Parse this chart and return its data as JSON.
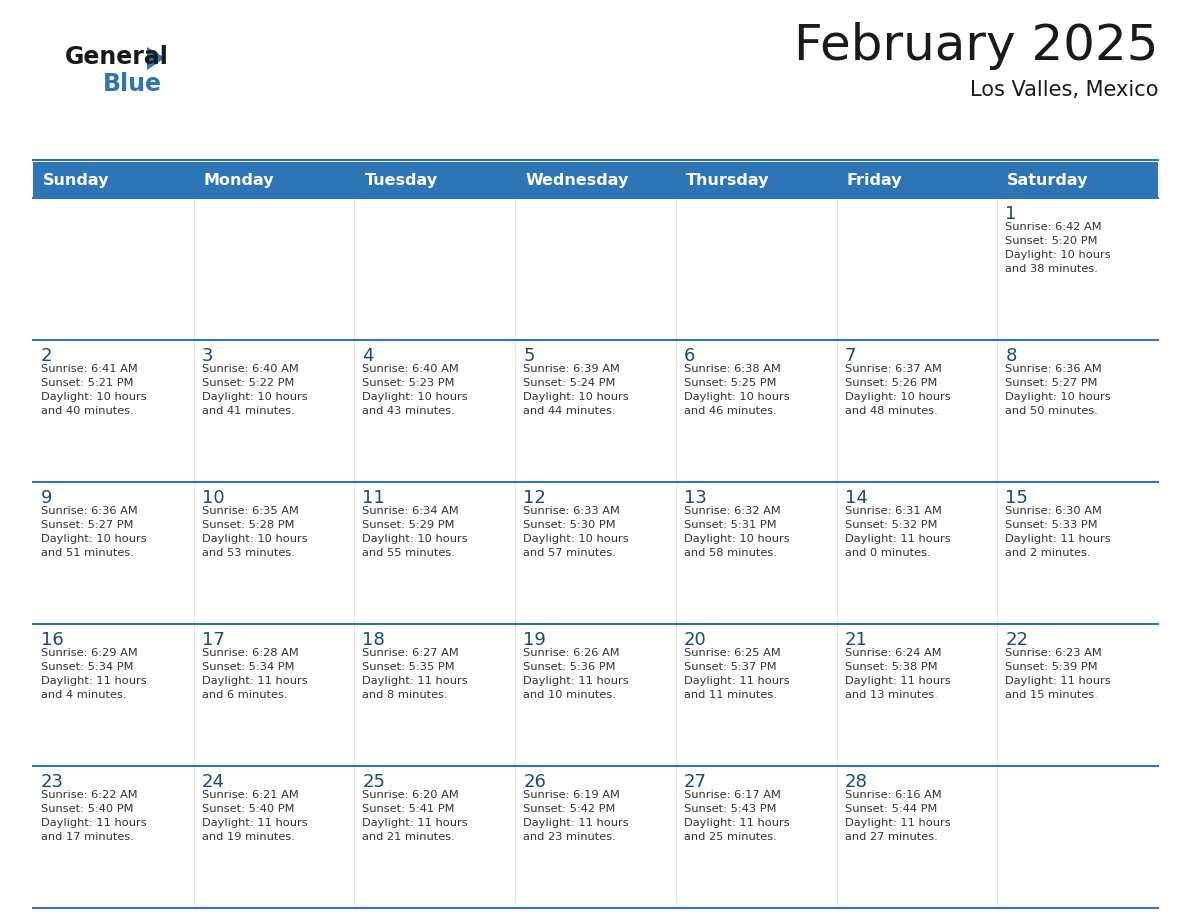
{
  "title": "February 2025",
  "subtitle": "Los Valles, Mexico",
  "header_color": "#2E75B6",
  "header_text_color": "#FFFFFF",
  "background_color": "#FFFFFF",
  "day_headers": [
    "Sunday",
    "Monday",
    "Tuesday",
    "Wednesday",
    "Thursday",
    "Friday",
    "Saturday"
  ],
  "title_color": "#1A1A1A",
  "subtitle_color": "#1A1A1A",
  "day_number_color": "#1A4A7A",
  "cell_text_color": "#333333",
  "divider_color": "#2E75B6",
  "logo_general_color": "#1A1A1A",
  "logo_blue_color": "#2E75B6",
  "logo_triangle_color": "#2E75B6",
  "days": [
    {
      "day": 1,
      "col": 6,
      "row": 0,
      "sunrise": "6:42 AM",
      "sunset": "5:20 PM",
      "daylight_hours": 10,
      "daylight_minutes": 38
    },
    {
      "day": 2,
      "col": 0,
      "row": 1,
      "sunrise": "6:41 AM",
      "sunset": "5:21 PM",
      "daylight_hours": 10,
      "daylight_minutes": 40
    },
    {
      "day": 3,
      "col": 1,
      "row": 1,
      "sunrise": "6:40 AM",
      "sunset": "5:22 PM",
      "daylight_hours": 10,
      "daylight_minutes": 41
    },
    {
      "day": 4,
      "col": 2,
      "row": 1,
      "sunrise": "6:40 AM",
      "sunset": "5:23 PM",
      "daylight_hours": 10,
      "daylight_minutes": 43
    },
    {
      "day": 5,
      "col": 3,
      "row": 1,
      "sunrise": "6:39 AM",
      "sunset": "5:24 PM",
      "daylight_hours": 10,
      "daylight_minutes": 44
    },
    {
      "day": 6,
      "col": 4,
      "row": 1,
      "sunrise": "6:38 AM",
      "sunset": "5:25 PM",
      "daylight_hours": 10,
      "daylight_minutes": 46
    },
    {
      "day": 7,
      "col": 5,
      "row": 1,
      "sunrise": "6:37 AM",
      "sunset": "5:26 PM",
      "daylight_hours": 10,
      "daylight_minutes": 48
    },
    {
      "day": 8,
      "col": 6,
      "row": 1,
      "sunrise": "6:36 AM",
      "sunset": "5:27 PM",
      "daylight_hours": 10,
      "daylight_minutes": 50
    },
    {
      "day": 9,
      "col": 0,
      "row": 2,
      "sunrise": "6:36 AM",
      "sunset": "5:27 PM",
      "daylight_hours": 10,
      "daylight_minutes": 51
    },
    {
      "day": 10,
      "col": 1,
      "row": 2,
      "sunrise": "6:35 AM",
      "sunset": "5:28 PM",
      "daylight_hours": 10,
      "daylight_minutes": 53
    },
    {
      "day": 11,
      "col": 2,
      "row": 2,
      "sunrise": "6:34 AM",
      "sunset": "5:29 PM",
      "daylight_hours": 10,
      "daylight_minutes": 55
    },
    {
      "day": 12,
      "col": 3,
      "row": 2,
      "sunrise": "6:33 AM",
      "sunset": "5:30 PM",
      "daylight_hours": 10,
      "daylight_minutes": 57
    },
    {
      "day": 13,
      "col": 4,
      "row": 2,
      "sunrise": "6:32 AM",
      "sunset": "5:31 PM",
      "daylight_hours": 10,
      "daylight_minutes": 58
    },
    {
      "day": 14,
      "col": 5,
      "row": 2,
      "sunrise": "6:31 AM",
      "sunset": "5:32 PM",
      "daylight_hours": 11,
      "daylight_minutes": 0
    },
    {
      "day": 15,
      "col": 6,
      "row": 2,
      "sunrise": "6:30 AM",
      "sunset": "5:33 PM",
      "daylight_hours": 11,
      "daylight_minutes": 2
    },
    {
      "day": 16,
      "col": 0,
      "row": 3,
      "sunrise": "6:29 AM",
      "sunset": "5:34 PM",
      "daylight_hours": 11,
      "daylight_minutes": 4
    },
    {
      "day": 17,
      "col": 1,
      "row": 3,
      "sunrise": "6:28 AM",
      "sunset": "5:34 PM",
      "daylight_hours": 11,
      "daylight_minutes": 6
    },
    {
      "day": 18,
      "col": 2,
      "row": 3,
      "sunrise": "6:27 AM",
      "sunset": "5:35 PM",
      "daylight_hours": 11,
      "daylight_minutes": 8
    },
    {
      "day": 19,
      "col": 3,
      "row": 3,
      "sunrise": "6:26 AM",
      "sunset": "5:36 PM",
      "daylight_hours": 11,
      "daylight_minutes": 10
    },
    {
      "day": 20,
      "col": 4,
      "row": 3,
      "sunrise": "6:25 AM",
      "sunset": "5:37 PM",
      "daylight_hours": 11,
      "daylight_minutes": 11
    },
    {
      "day": 21,
      "col": 5,
      "row": 3,
      "sunrise": "6:24 AM",
      "sunset": "5:38 PM",
      "daylight_hours": 11,
      "daylight_minutes": 13
    },
    {
      "day": 22,
      "col": 6,
      "row": 3,
      "sunrise": "6:23 AM",
      "sunset": "5:39 PM",
      "daylight_hours": 11,
      "daylight_minutes": 15
    },
    {
      "day": 23,
      "col": 0,
      "row": 4,
      "sunrise": "6:22 AM",
      "sunset": "5:40 PM",
      "daylight_hours": 11,
      "daylight_minutes": 17
    },
    {
      "day": 24,
      "col": 1,
      "row": 4,
      "sunrise": "6:21 AM",
      "sunset": "5:40 PM",
      "daylight_hours": 11,
      "daylight_minutes": 19
    },
    {
      "day": 25,
      "col": 2,
      "row": 4,
      "sunrise": "6:20 AM",
      "sunset": "5:41 PM",
      "daylight_hours": 11,
      "daylight_minutes": 21
    },
    {
      "day": 26,
      "col": 3,
      "row": 4,
      "sunrise": "6:19 AM",
      "sunset": "5:42 PM",
      "daylight_hours": 11,
      "daylight_minutes": 23
    },
    {
      "day": 27,
      "col": 4,
      "row": 4,
      "sunrise": "6:17 AM",
      "sunset": "5:43 PM",
      "daylight_hours": 11,
      "daylight_minutes": 25
    },
    {
      "day": 28,
      "col": 5,
      "row": 4,
      "sunrise": "6:16 AM",
      "sunset": "5:44 PM",
      "daylight_hours": 11,
      "daylight_minutes": 27
    }
  ]
}
